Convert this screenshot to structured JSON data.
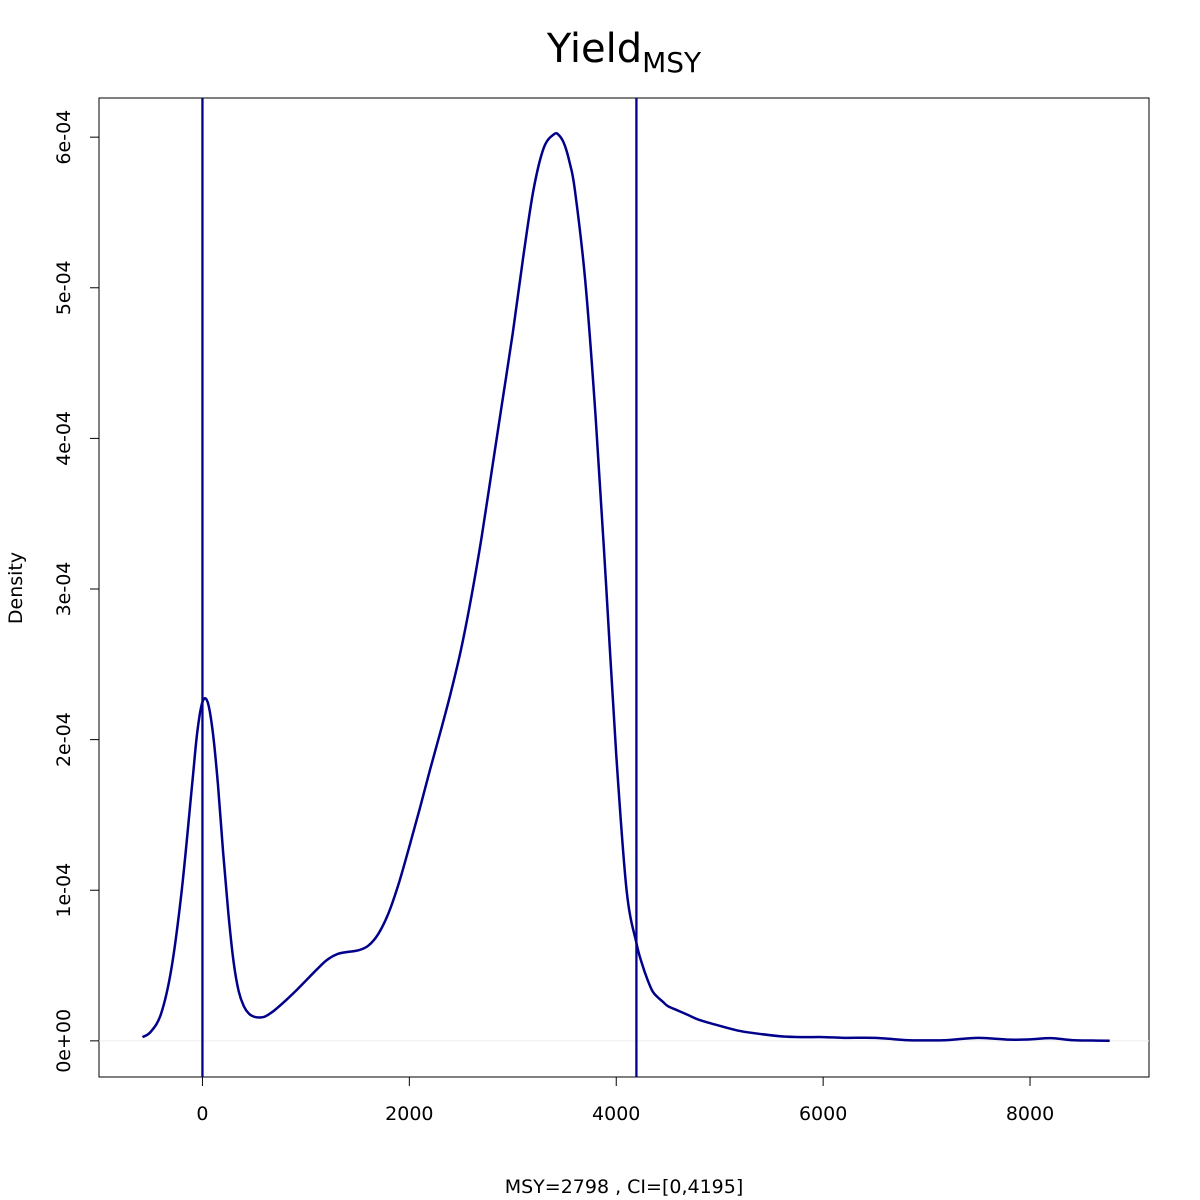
{
  "chart_data": {
    "type": "line",
    "title": "Yield",
    "title_subscript": "MSY",
    "xlabel": "MSY=2798 , CI=[0,4195]",
    "ylabel": "Density",
    "xlim": [
      -1000,
      9150
    ],
    "ylim": [
      -2.4e-05,
      0.000626
    ],
    "x_ticks": [
      0,
      2000,
      4000,
      6000,
      8000
    ],
    "x_tick_labels": [
      "0",
      "2000",
      "4000",
      "6000",
      "8000"
    ],
    "y_ticks": [
      0,
      0.0001,
      0.0002,
      0.0003,
      0.0004,
      0.0005,
      0.0006
    ],
    "y_tick_labels": [
      "0e+00",
      "1e-04",
      "2e-04",
      "3e-04",
      "4e-04",
      "5e-04",
      "6e-04"
    ],
    "zero_line": 0,
    "vlines": [
      0,
      4195
    ],
    "line_color": "#00008b",
    "zero_line_color": "#eeeeee",
    "grid": false,
    "series": [
      {
        "x": [
          -580,
          -500,
          -400,
          -300,
          -200,
          -100,
          -50,
          0,
          50,
          100,
          150,
          200,
          250,
          300,
          350,
          400,
          450,
          500,
          550,
          600,
          650,
          700,
          800,
          900,
          1000,
          1100,
          1200,
          1300,
          1400,
          1500,
          1600,
          1700,
          1800,
          1900,
          2000,
          2100,
          2200,
          2300,
          2400,
          2500,
          2600,
          2700,
          2800,
          2900,
          3000,
          3100,
          3200,
          3300,
          3400,
          3450,
          3500,
          3550,
          3600,
          3700,
          3800,
          3900,
          4000,
          4100,
          4195,
          4250,
          4300,
          4350,
          4400,
          4450,
          4500,
          4600,
          4700,
          4800,
          5000,
          5200,
          5400,
          5600,
          5800,
          6000,
          6200,
          6500,
          6800,
          7000,
          7200,
          7500,
          7800,
          8000,
          8200,
          8400,
          8600,
          8770
        ],
        "y": [
          2.5e-06,
          6e-06,
          1.8e-05,
          4.8e-05,
          0.0001,
          0.00017,
          0.000205,
          0.000225,
          0.000225,
          0.000205,
          0.00017,
          0.000125,
          8.5e-05,
          5.3e-05,
          3.3e-05,
          2.3e-05,
          1.8e-05,
          1.6e-05,
          1.55e-05,
          1.6e-05,
          1.8e-05,
          2.05e-05,
          2.65e-05,
          3.3e-05,
          4e-05,
          4.7e-05,
          5.35e-05,
          5.75e-05,
          5.9e-05,
          6e-05,
          6.3e-05,
          7.1e-05,
          8.5e-05,
          0.000105,
          0.000129,
          0.000154,
          0.00018,
          0.000205,
          0.000231,
          0.00026,
          0.000295,
          0.000335,
          0.00038,
          0.000425,
          0.00047,
          0.00052,
          0.000565,
          0.000593,
          0.000602,
          0.000601,
          0.000595,
          0.000583,
          0.000565,
          0.000505,
          0.000415,
          0.000305,
          0.00019,
          0.0001,
          6.5e-05,
          5.1e-05,
          4.1e-05,
          3.3e-05,
          2.9e-05,
          2.6e-05,
          2.3e-05,
          2e-05,
          1.7e-05,
          1.4e-05,
          1e-05,
          6.5e-06,
          4.5e-06,
          3e-06,
          2.5e-06,
          2.5e-06,
          2e-06,
          2e-06,
          5e-07,
          3e-07,
          5e-07,
          2e-06,
          8e-07,
          1e-06,
          1.8e-06,
          5e-07,
          2e-07,
          1e-07
        ]
      }
    ]
  }
}
